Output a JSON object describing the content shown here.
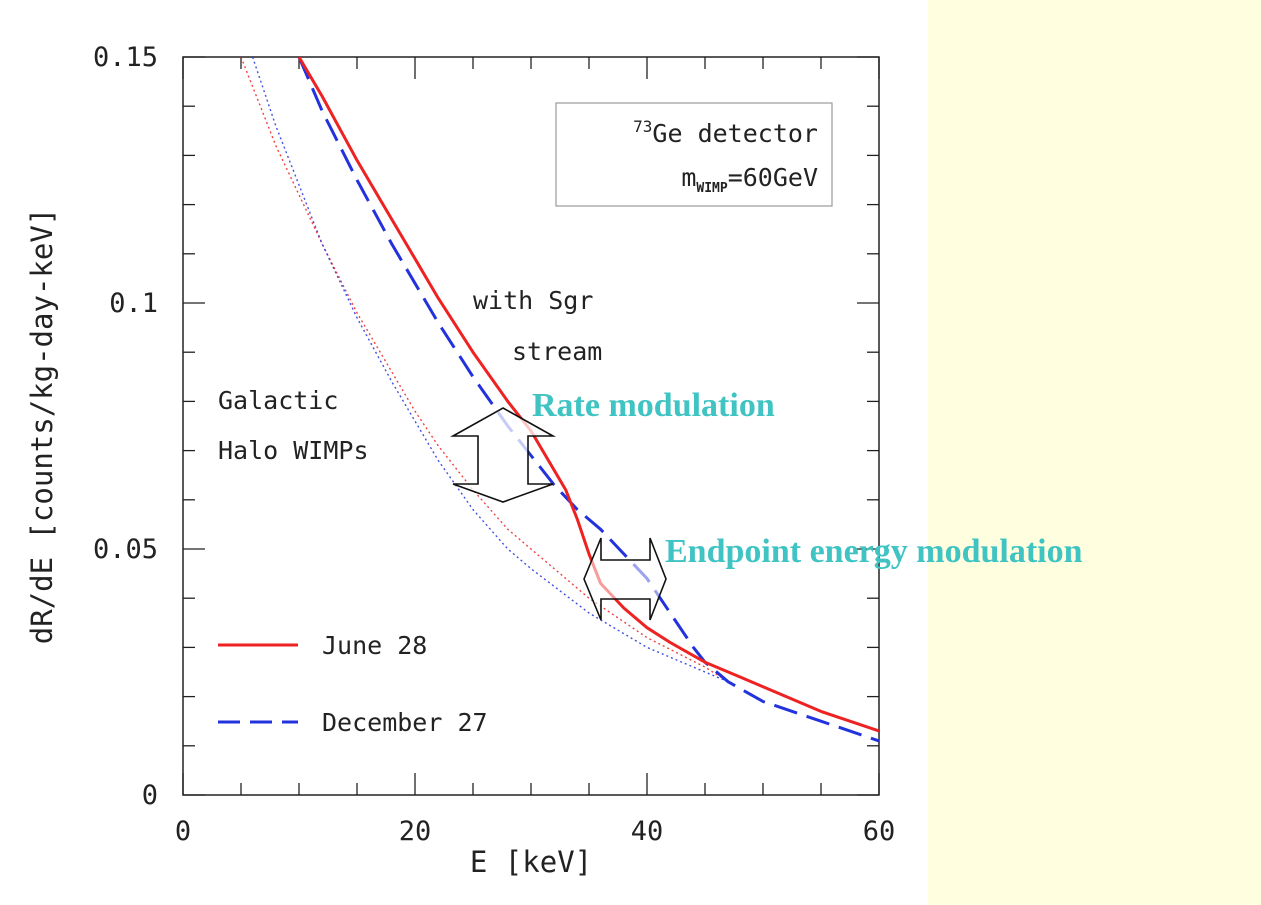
{
  "chart_data": {
    "type": "line",
    "xlabel": "E [keV]",
    "ylabel": "dR/dE [counts/kg-day-keV]",
    "xlim": [
      0,
      60
    ],
    "ylim": [
      0,
      0.15
    ],
    "x_ticks": [
      "0",
      "20",
      "40",
      "60"
    ],
    "y_ticks": [
      "0",
      "0.05",
      "0.1",
      "0.15"
    ],
    "grid": false,
    "inset_box": {
      "line1_sup": "73",
      "line1_text": "Ge detector",
      "line2_prefix": "m",
      "line2_sub": "WIMP",
      "line2_text": "=60GeV"
    },
    "annotations": {
      "sgr_line1": "with Sgr",
      "sgr_line2": "stream",
      "halo_line1": "Galactic",
      "halo_line2": "Halo WIMPs",
      "rate_modulation": "Rate modulation",
      "endpoint_modulation": "Endpoint energy modulation"
    },
    "legend_placement": "bottom-left",
    "colors": {
      "june": "#ee2222",
      "december": "#2233dd",
      "callout": "#3fc3c3"
    },
    "series": [
      {
        "name": "June 28",
        "style": "solid",
        "x": [
          10,
          12,
          15,
          18,
          20,
          22,
          25,
          28,
          30,
          32,
          33,
          34,
          35,
          36,
          38,
          40,
          42,
          45,
          48,
          50,
          55,
          60
        ],
        "y": [
          0.15,
          0.142,
          0.129,
          0.117,
          0.109,
          0.101,
          0.09,
          0.08,
          0.074,
          0.066,
          0.062,
          0.056,
          0.049,
          0.043,
          0.038,
          0.034,
          0.031,
          0.027,
          0.024,
          0.022,
          0.017,
          0.013
        ]
      },
      {
        "name": "December 27",
        "style": "dashed",
        "x": [
          10,
          12,
          15,
          18,
          20,
          22,
          25,
          28,
          30,
          32,
          34,
          36,
          38,
          40,
          42,
          44,
          45,
          47,
          50,
          55,
          60
        ],
        "y": [
          0.15,
          0.139,
          0.125,
          0.112,
          0.104,
          0.096,
          0.085,
          0.075,
          0.069,
          0.063,
          0.058,
          0.054,
          0.049,
          0.044,
          0.037,
          0.03,
          0.027,
          0.023,
          0.019,
          0.015,
          0.011
        ]
      },
      {
        "name": "Galactic Halo WIMPs (June)",
        "style": "dotted",
        "x": [
          5,
          8,
          10,
          12,
          15,
          18,
          20,
          22,
          25,
          28,
          30,
          35,
          40,
          45,
          47
        ],
        "y": [
          0.15,
          0.132,
          0.122,
          0.112,
          0.098,
          0.086,
          0.078,
          0.071,
          0.062,
          0.054,
          0.05,
          0.04,
          0.032,
          0.026,
          0.023
        ]
      },
      {
        "name": "Galactic Halo WIMPs (December)",
        "style": "dotted",
        "x": [
          6,
          8,
          10,
          12,
          15,
          18,
          20,
          22,
          25,
          28,
          30,
          35,
          40,
          45,
          47
        ],
        "y": [
          0.15,
          0.136,
          0.124,
          0.112,
          0.097,
          0.084,
          0.076,
          0.068,
          0.058,
          0.05,
          0.046,
          0.037,
          0.03,
          0.025,
          0.023
        ]
      }
    ],
    "legend": [
      {
        "label": "June 28",
        "style": "solid"
      },
      {
        "label": "December 27",
        "style": "dashed"
      }
    ]
  }
}
